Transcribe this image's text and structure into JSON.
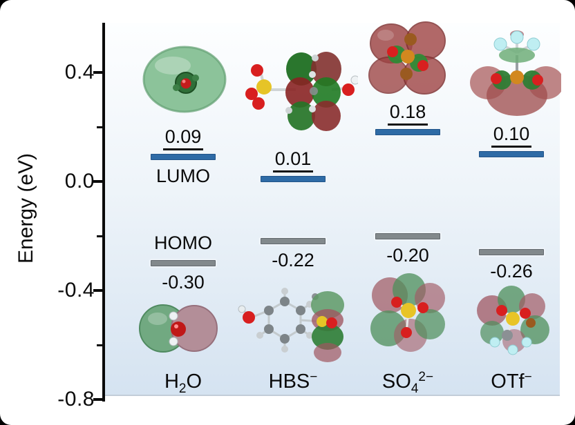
{
  "figure": {
    "y_axis": {
      "label": "Energy (eV)",
      "major_ticks": [
        "0.4",
        "0.0",
        "-0.4",
        "-0.8"
      ]
    },
    "annotations": {
      "lumo": "LUMO",
      "homo": "HOMO"
    },
    "columns": [
      {
        "id": "h2o",
        "label": {
          "pre": "H",
          "sub": "2",
          "mid": "O",
          "sup": ""
        },
        "lumo_value": "0.09",
        "homo_value": "-0.30"
      },
      {
        "id": "hbs",
        "label": {
          "pre": "HBS",
          "sub": "",
          "mid": "",
          "sup": "−"
        },
        "lumo_value": "0.01",
        "homo_value": "-0.22"
      },
      {
        "id": "so4",
        "label": {
          "pre": "SO",
          "sub": "4",
          "mid": "",
          "sup": "2−"
        },
        "lumo_value": "0.18",
        "homo_value": "-0.20"
      },
      {
        "id": "otf",
        "label": {
          "pre": "OTf",
          "sub": "",
          "mid": "",
          "sup": "−"
        },
        "lumo_value": "0.10",
        "homo_value": "-0.26"
      }
    ]
  },
  "colors": {
    "lumo_bar": "#2e6ba6",
    "homo_bar": "#82898c",
    "plot_bg_top": "#fdfeff",
    "plot_bg_bottom": "#d5e3f1",
    "frame": "#000000",
    "text": "#0a0a0a"
  },
  "chart_data": {
    "type": "bar",
    "title": "",
    "xlabel": "",
    "ylabel": "Energy (eV)",
    "ylim": [
      -0.8,
      0.58
    ],
    "yticks": [
      0.4,
      0.0,
      -0.4,
      -0.8
    ],
    "minor_yticks": [
      0.2,
      -0.2,
      -0.6
    ],
    "grid": false,
    "legend_position": "inline annotations LUMO and HOMO beside first column levels",
    "categories": [
      "H₂O",
      "HBS⁻",
      "SO₄²⁻",
      "OTf⁻"
    ],
    "series": [
      {
        "name": "LUMO",
        "color": "#2e6ba6",
        "values": [
          0.09,
          0.01,
          0.18,
          0.1
        ]
      },
      {
        "name": "HOMO",
        "color": "#82898c",
        "values": [
          -0.3,
          -0.22,
          -0.2,
          -0.26
        ]
      }
    ],
    "notes": "Energy level diagram; each level bar is annotated with its energy in eV and accompanied by a molecular-orbital isosurface rendering (green/red lobes)."
  }
}
